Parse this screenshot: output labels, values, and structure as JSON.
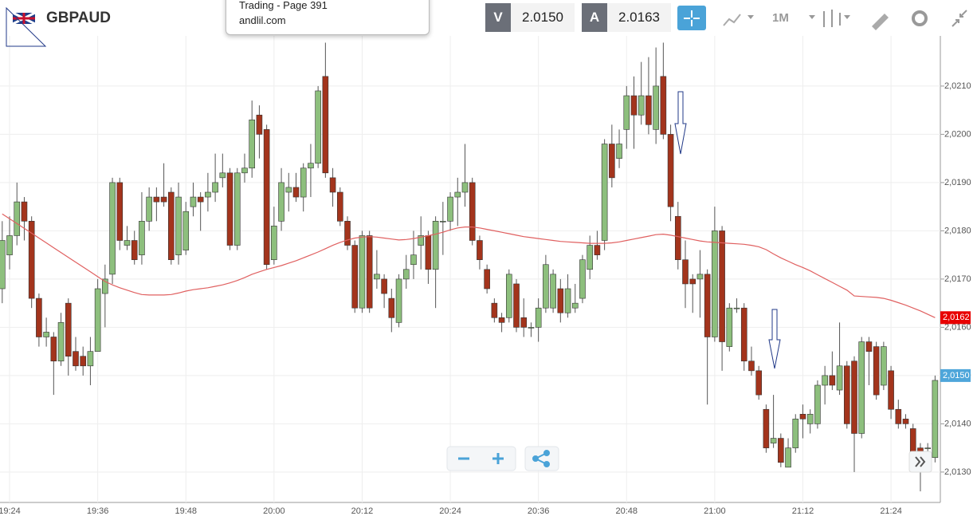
{
  "toolbar": {
    "symbol": "GBPAUD",
    "popup": {
      "title": "Trading - Page 391",
      "url": "andlil.com"
    },
    "sell": {
      "label": "V",
      "price": "2.0150"
    },
    "buy": {
      "label": "A",
      "price": "2.0163"
    },
    "timeframe": "1M"
  },
  "chart_data": {
    "type": "candlestick",
    "categories": [
      null,
      "19:24",
      null,
      null,
      null,
      null,
      null,
      null,
      null,
      null,
      null,
      null,
      null,
      "19:36",
      null,
      null,
      null,
      null,
      null,
      null,
      null,
      null,
      null,
      null,
      null,
      "19:48",
      null,
      null,
      null,
      null,
      null,
      null,
      null,
      null,
      null,
      null,
      null,
      "20:00",
      null,
      null,
      null,
      null,
      null,
      null,
      null,
      null,
      null,
      null,
      null,
      "20:12",
      null,
      null,
      null,
      null,
      null,
      null,
      null,
      null,
      null,
      null,
      null,
      "20:24",
      null,
      null,
      null,
      null,
      null,
      null,
      null,
      null,
      null,
      null,
      null,
      "20:36",
      null,
      null,
      null,
      null,
      null,
      null,
      null,
      null,
      null,
      null,
      null,
      "20:48",
      null,
      null,
      null,
      null,
      null,
      null,
      null,
      null,
      null,
      null,
      null,
      "21:00",
      null,
      null,
      null,
      null,
      null,
      null,
      null,
      null,
      null,
      null,
      null,
      "21:12",
      null,
      null,
      null,
      null,
      null,
      null,
      null,
      null,
      null,
      null,
      null,
      "21:24",
      null,
      null,
      null,
      null,
      null,
      null
    ],
    "open": [
      2.0168,
      2.0175,
      2.0179,
      2.0186,
      2.0182,
      2.0166,
      2.0158,
      2.0158,
      2.0153,
      2.0165,
      2.0155,
      2.0154,
      2.0152,
      2.0155,
      2.0167,
      2.0171,
      2.019,
      2.0177,
      2.0178,
      2.0175,
      2.0182,
      2.0187,
      2.0187,
      2.0188,
      2.0175,
      2.0176,
      2.0185,
      2.0187,
      2.0187,
      2.0188,
      2.0191,
      2.0192,
      2.0177,
      2.0192,
      2.0193,
      2.0204,
      2.0201,
      2.0174,
      2.0182,
      2.0188,
      2.0189,
      2.0187,
      2.0193,
      2.0194,
      2.0212,
      2.0191,
      2.0188,
      2.0182,
      2.0177,
      2.0164,
      2.0179,
      2.017,
      2.017,
      2.0166,
      2.0161,
      2.017,
      2.0173,
      2.0177,
      2.0179,
      2.0172,
      2.0182,
      2.0182,
      2.0187,
      2.0188,
      2.019,
      2.0178,
      2.0172,
      2.0165,
      2.0162,
      2.0162,
      2.0169,
      2.0162,
      2.016,
      2.016,
      2.0164,
      2.0164,
      2.0168,
      2.0163,
      2.0164,
      2.0166,
      2.0172,
      2.0177,
      2.0178,
      2.0198,
      2.0195,
      2.0201,
      2.0208,
      2.0204,
      2.0208,
      2.0201,
      2.0212,
      2.02,
      2.0183,
      2.0174,
      2.017,
      2.017,
      2.0171,
      2.0158,
      2.018,
      2.0156,
      2.0164,
      2.0164,
      2.0153,
      2.0151,
      2.0143,
      2.0136,
      2.0137,
      2.0131,
      2.0135,
      2.0142,
      2.014,
      2.014,
      2.0148,
      2.015,
      2.0147,
      2.0152,
      2.0153,
      2.0138,
      2.0157,
      2.0156,
      2.0148,
      2.0151,
      2.0143,
      2.0141,
      2.0139,
      2.0135,
      2.0135,
      2.0133
    ],
    "high": [
      2.0182,
      2.0183,
      2.019,
      2.0187,
      2.0183,
      2.0167,
      2.0162,
      2.0159,
      2.0163,
      2.0166,
      2.0158,
      2.0156,
      2.0158,
      2.017,
      2.0173,
      2.0191,
      2.0191,
      2.0181,
      2.018,
      2.0188,
      2.0189,
      2.0189,
      2.0194,
      2.0189,
      2.019,
      2.0186,
      2.019,
      2.0188,
      2.0192,
      2.0196,
      2.0196,
      2.0193,
      2.0193,
      2.0196,
      2.0207,
      2.0206,
      2.0202,
      2.0185,
      2.0193,
      2.0192,
      2.0192,
      2.0194,
      2.0198,
      2.021,
      2.0219,
      2.0193,
      2.0189,
      2.0183,
      2.0178,
      2.018,
      2.018,
      2.0176,
      2.0171,
      2.0168,
      2.0171,
      2.0175,
      2.018,
      2.0183,
      2.018,
      2.0183,
      2.0186,
      2.0188,
      2.0191,
      2.0198,
      2.0191,
      2.0179,
      2.0173,
      2.0166,
      2.0163,
      2.0172,
      2.017,
      2.0166,
      2.0161,
      2.0166,
      2.0175,
      2.0172,
      2.017,
      2.0171,
      2.0169,
      2.0175,
      2.0179,
      2.018,
      2.0199,
      2.0202,
      2.0201,
      2.021,
      2.0212,
      2.0215,
      2.0216,
      2.0218,
      2.0219,
      2.0202,
      2.0186,
      2.0178,
      2.0171,
      2.0176,
      2.0172,
      2.0185,
      2.0181,
      2.0165,
      2.0166,
      2.0165,
      2.0156,
      2.0152,
      2.0144,
      2.0146,
      2.0138,
      2.0137,
      2.0142,
      2.0144,
      2.0143,
      2.0149,
      2.0152,
      2.0155,
      2.0161,
      2.0153,
      2.0154,
      2.0158,
      2.0158,
      2.0157,
      2.0157,
      2.0152,
      2.0145,
      2.0142,
      2.014,
      2.0136,
      2.0136,
      2.015
    ],
    "low": [
      2.0165,
      2.0172,
      2.0177,
      2.0178,
      2.0164,
      2.0156,
      2.0156,
      2.0146,
      2.0152,
      2.015,
      2.0151,
      2.015,
      2.0148,
      2.0155,
      2.016,
      2.0169,
      2.0176,
      2.0176,
      2.0173,
      2.0173,
      2.018,
      2.0182,
      2.0185,
      2.0173,
      2.0173,
      2.0175,
      2.0183,
      2.018,
      2.0184,
      2.0186,
      2.0189,
      2.0176,
      2.0176,
      2.019,
      2.0191,
      2.0195,
      2.0172,
      2.0173,
      2.018,
      2.0184,
      2.0186,
      2.0184,
      2.0187,
      2.0193,
      2.0191,
      2.0185,
      2.0181,
      2.0176,
      2.0163,
      2.0163,
      2.0163,
      2.0168,
      2.0164,
      2.0159,
      2.016,
      2.0168,
      2.017,
      2.0172,
      2.0169,
      2.0164,
      2.0175,
      2.018,
      2.0181,
      2.0185,
      2.0177,
      2.0172,
      2.0167,
      2.0161,
      2.0159,
      2.0161,
      2.0159,
      2.0158,
      2.0158,
      2.0157,
      2.0163,
      2.0163,
      2.0161,
      2.0162,
      2.0163,
      2.0165,
      2.017,
      2.0174,
      2.0176,
      2.0189,
      2.0193,
      2.0197,
      2.0197,
      2.0202,
      2.02,
      2.0198,
      2.0199,
      2.0182,
      2.0172,
      2.0164,
      2.0163,
      2.0162,
      2.0144,
      2.0157,
      2.0151,
      2.0155,
      2.0163,
      2.0151,
      2.015,
      2.0145,
      2.0134,
      2.0135,
      2.0131,
      2.0131,
      2.0134,
      2.0137,
      2.0138,
      2.0139,
      2.0144,
      2.0147,
      2.0146,
      2.0139,
      2.013,
      2.0137,
      2.0148,
      2.0145,
      2.0147,
      2.0141,
      2.0139,
      2.0139,
      2.0131,
      2.0126,
      2.0133,
      2.0132
    ],
    "close": [
      2.0178,
      2.0179,
      2.0186,
      2.0182,
      2.0166,
      2.0158,
      2.0159,
      2.0153,
      2.0161,
      2.0154,
      2.0152,
      2.0152,
      2.0155,
      2.0168,
      2.017,
      2.019,
      2.0178,
      2.0178,
      2.0174,
      2.0182,
      2.0187,
      2.0186,
      2.0186,
      2.0174,
      2.0187,
      2.0184,
      2.0187,
      2.0186,
      2.0188,
      2.019,
      2.0192,
      2.0177,
      2.0192,
      2.0193,
      2.0203,
      2.02,
      2.0173,
      2.0181,
      2.019,
      2.0189,
      2.0187,
      2.0193,
      2.0194,
      2.0209,
      2.0192,
      2.0188,
      2.0182,
      2.0177,
      2.0164,
      2.0179,
      2.0164,
      2.0171,
      2.0167,
      2.0162,
      2.017,
      2.0172,
      2.0175,
      2.0179,
      2.0172,
      2.0182,
      2.0182,
      2.0187,
      2.0188,
      2.019,
      2.0178,
      2.0174,
      2.0168,
      2.0162,
      2.0161,
      2.0171,
      2.016,
      2.016,
      2.016,
      2.0164,
      2.0173,
      2.0171,
      2.0163,
      2.0168,
      2.0165,
      2.0174,
      2.0177,
      2.0175,
      2.0198,
      2.0191,
      2.0198,
      2.0208,
      2.0204,
      2.0208,
      2.0202,
      2.021,
      2.02,
      2.0185,
      2.0174,
      2.0169,
      2.0169,
      2.0171,
      2.0158,
      2.018,
      2.0157,
      2.0164,
      2.0164,
      2.0153,
      2.0151,
      2.0146,
      2.0135,
      2.0137,
      2.0132,
      2.0135,
      2.0141,
      2.0141,
      2.0142,
      2.0148,
      2.015,
      2.0148,
      2.0152,
      2.014,
      2.0138,
      2.0157,
      2.0155,
      2.0146,
      2.0156,
      2.0143,
      2.014,
      2.014,
      2.0134,
      2.0134,
      2.0135,
      2.0149
    ],
    "up_color": "#8dbf7d",
    "down_color": "#a3341c",
    "series": [
      {
        "color": "#e06060",
        "values": [
          2.01835,
          2.01825,
          2.01815,
          2.01805,
          2.01795,
          2.01785,
          2.01775,
          2.01765,
          2.01755,
          2.01745,
          2.01735,
          2.01725,
          2.01715,
          2.01705,
          2.01695,
          2.01688,
          2.01682,
          2.01677,
          2.01672,
          2.01668,
          2.01667,
          2.01667,
          2.01667,
          2.01668,
          2.01671,
          2.01675,
          2.01678,
          2.0168,
          2.01682,
          2.01685,
          2.01688,
          2.01692,
          2.01697,
          2.01703,
          2.0171,
          2.01715,
          2.0172,
          2.01724,
          2.01728,
          2.01733,
          2.01738,
          2.01744,
          2.0175,
          2.01756,
          2.01763,
          2.0177,
          2.01776,
          2.01781,
          2.01785,
          2.01787,
          2.01788,
          2.01787,
          2.01785,
          2.01783,
          2.01781,
          2.01782,
          2.01784,
          2.01787,
          2.0179,
          2.01793,
          2.01797,
          2.01802,
          2.01806,
          2.01808,
          2.01808,
          2.01806,
          2.01803,
          2.018,
          2.01797,
          2.01794,
          2.01791,
          2.01788,
          2.01786,
          2.01784,
          2.01782,
          2.0178,
          2.01778,
          2.01777,
          2.01776,
          2.01775,
          2.01774,
          2.01774,
          2.01774,
          2.01775,
          2.01777,
          2.0178,
          2.01783,
          2.01786,
          2.01789,
          2.01792,
          2.01793,
          2.01791,
          2.01788,
          2.01785,
          2.01782,
          2.01779,
          2.01777,
          2.01776,
          2.01775,
          2.01774,
          2.01773,
          2.01772,
          2.0177,
          2.01767,
          2.01761,
          2.01752,
          2.01744,
          2.01737,
          2.0173,
          2.01724,
          2.01717,
          2.01709,
          2.01701,
          2.01693,
          2.01685,
          2.01677,
          2.01665,
          2.01664,
          2.01663,
          2.01662,
          2.0166,
          2.01656,
          2.01651,
          2.01646,
          2.0164,
          2.01634,
          2.01627,
          2.0162
        ]
      }
    ],
    "ylim": [
      2.01237,
      2.02204
    ],
    "yticks": [
      {
        "value": 2.013,
        "label": "2,0130"
      },
      {
        "value": 2.014,
        "label": "2,0140"
      },
      {
        "value": 2.015,
        "label": "2,0150"
      },
      {
        "value": 2.016,
        "label": "2,0160"
      },
      {
        "value": 2.017,
        "label": "2,0170"
      },
      {
        "value": 2.018,
        "label": "2,0180"
      },
      {
        "value": 2.019,
        "label": "2,0190"
      },
      {
        "value": 2.02,
        "label": "2,0200"
      },
      {
        "value": 2.021,
        "label": "2,0210"
      }
    ],
    "grid": true,
    "price_tags": [
      {
        "value": 2.0162,
        "label": "2,0162",
        "color": "#e80000"
      },
      {
        "value": 2.015,
        "label": "2,0150",
        "color": "#4ea6da"
      }
    ]
  }
}
